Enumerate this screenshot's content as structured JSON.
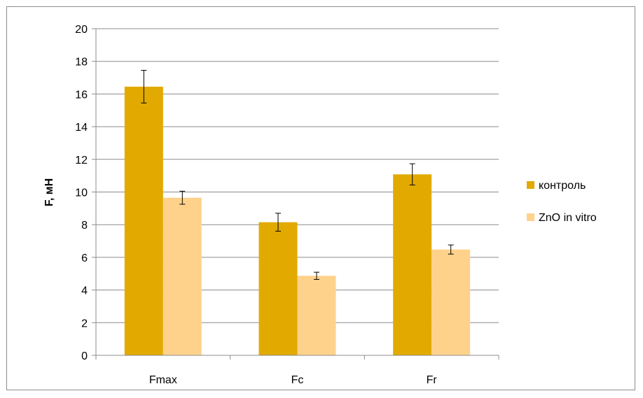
{
  "chart_data": {
    "type": "bar",
    "categories": [
      "Fmax",
      "Fc",
      "Fr"
    ],
    "series": [
      {
        "name": "контроль",
        "values": [
          16.45,
          8.15,
          11.08
        ],
        "errors": [
          1.0,
          0.55,
          0.65
        ],
        "color": "#E2AA00"
      },
      {
        "name": "ZnO in vitro",
        "values": [
          9.65,
          4.87,
          6.48
        ],
        "errors": [
          0.4,
          0.22,
          0.28
        ],
        "color": "#FFD28C"
      }
    ],
    "ylabel": "F, мН",
    "ylim": [
      0,
      20
    ],
    "yticks": [
      0,
      2,
      4,
      6,
      8,
      10,
      12,
      14,
      16,
      18,
      20
    ],
    "grid": true,
    "legend": "right"
  }
}
